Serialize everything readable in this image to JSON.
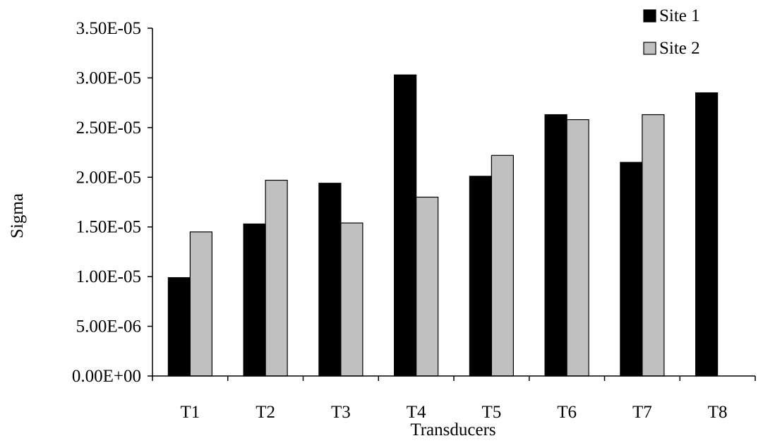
{
  "chart_data": {
    "type": "bar",
    "title": "",
    "xlabel": "Transducers",
    "ylabel": "Sigma",
    "categories": [
      "T1",
      "T2",
      "T3",
      "T4",
      "T5",
      "T6",
      "T7",
      "T8"
    ],
    "series": [
      {
        "name": "Site 1",
        "color": "#000000",
        "values": [
          9.9e-06,
          1.53e-05,
          1.94e-05,
          3.03e-05,
          2.01e-05,
          2.63e-05,
          2.15e-05,
          2.85e-05
        ]
      },
      {
        "name": "Site 2",
        "color": "#c0c0c0",
        "values": [
          1.45e-05,
          1.97e-05,
          1.54e-05,
          1.8e-05,
          2.22e-05,
          2.58e-05,
          2.63e-05,
          null
        ]
      }
    ],
    "ylim": [
      0,
      3.5e-05
    ],
    "yticks": [
      "0.00E+00",
      "5.00E-06",
      "1.00E-05",
      "1.50E-05",
      "2.00E-05",
      "2.50E-05",
      "3.00E-05",
      "3.50E-05"
    ],
    "ytick_values": [
      0,
      5e-06,
      1e-05,
      1.5e-05,
      2e-05,
      2.5e-05,
      3e-05,
      3.5e-05
    ],
    "grid": false,
    "legend_position": "top-right"
  }
}
